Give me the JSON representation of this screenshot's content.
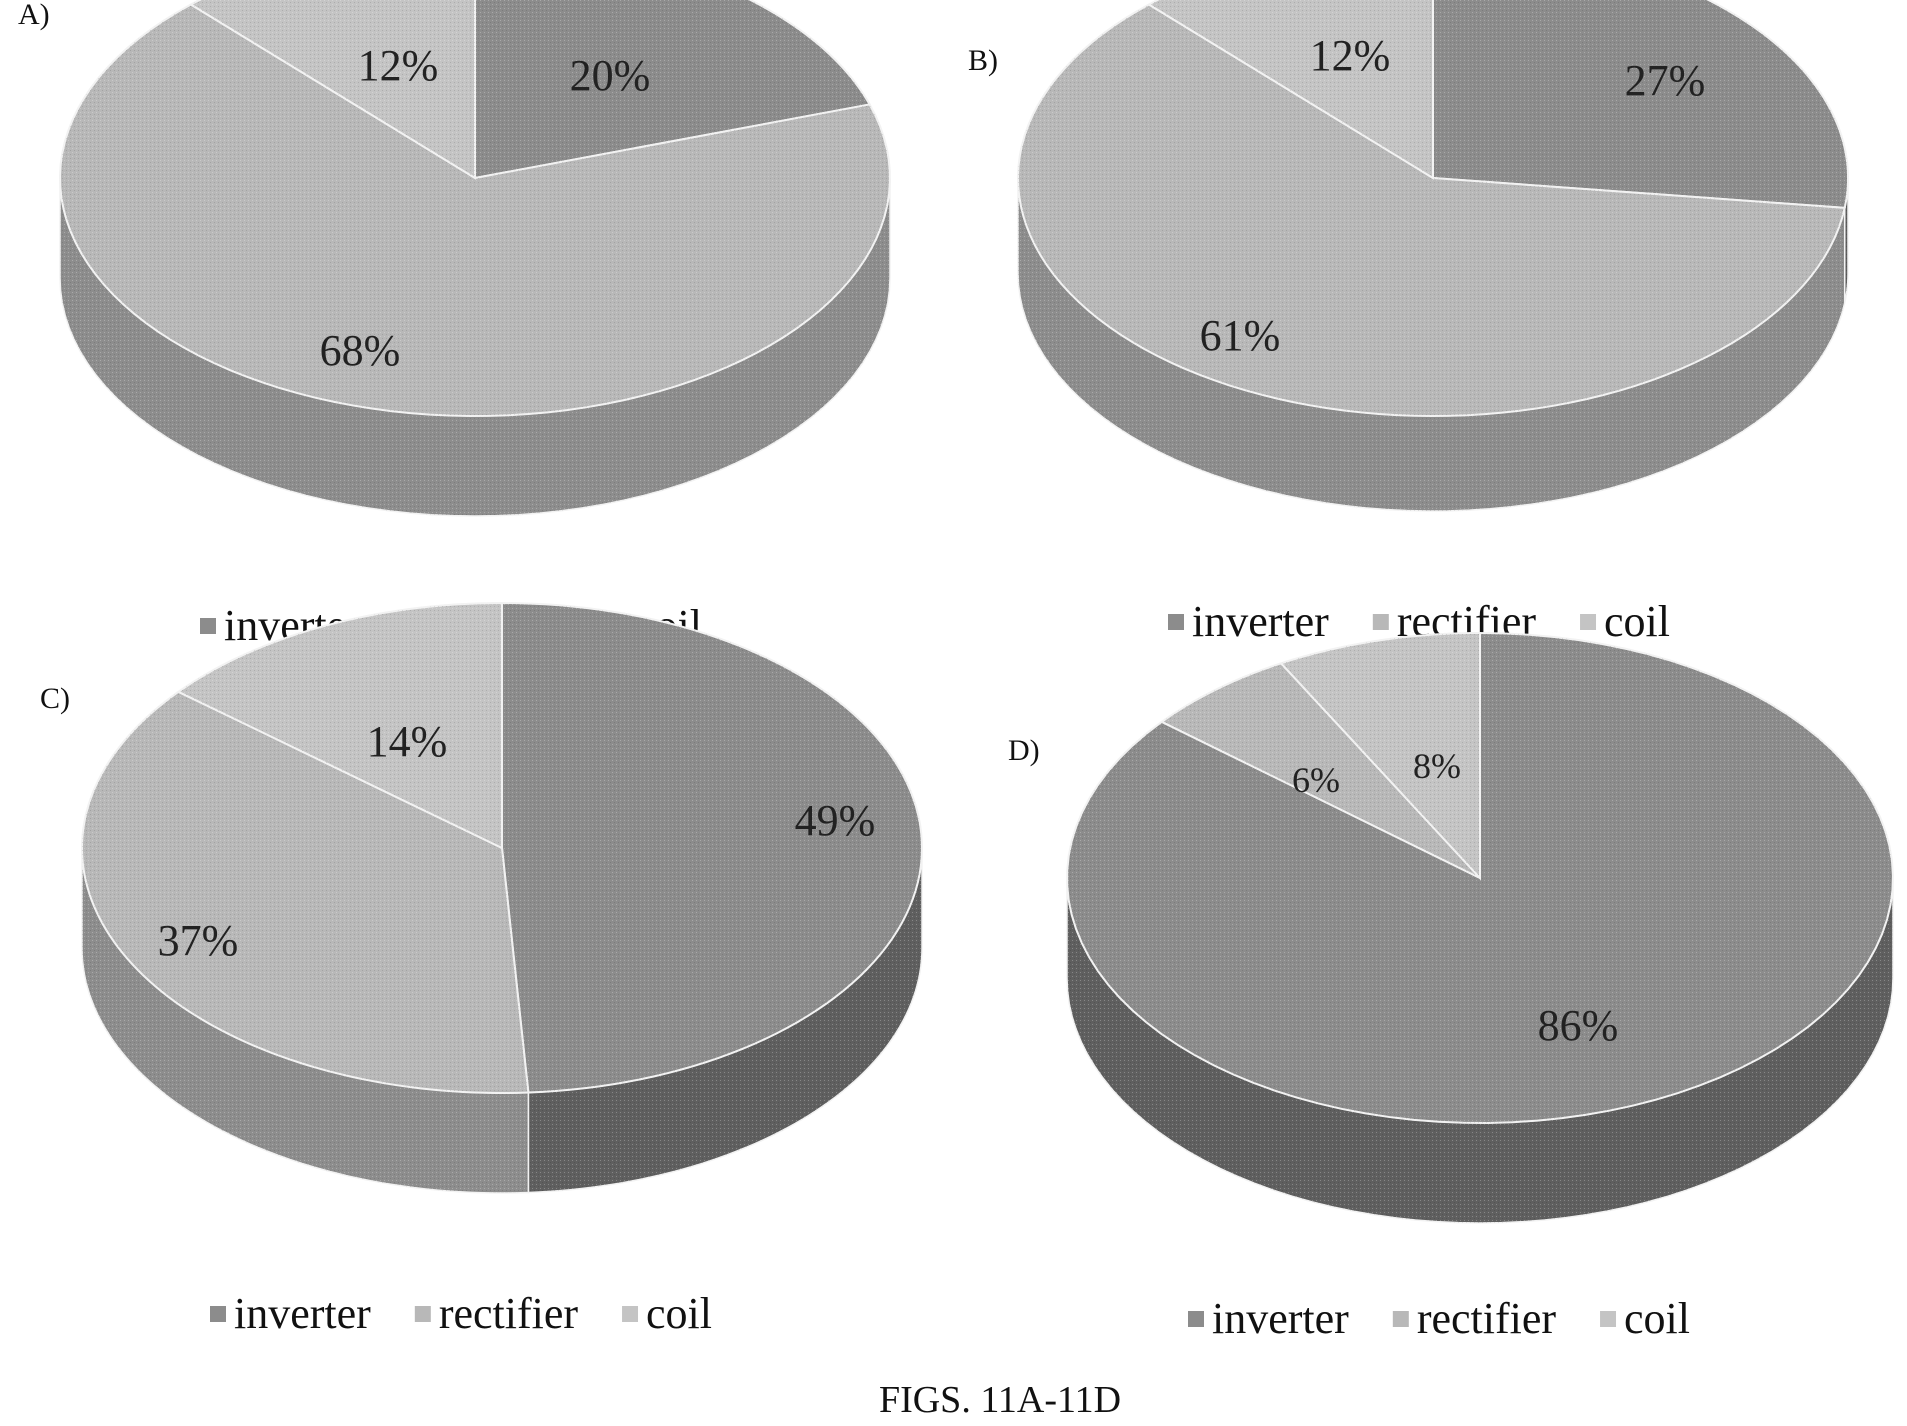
{
  "figure_caption": "FIGS. 11A-11D",
  "legend_labels": [
    "inverter",
    "rectifier",
    "coil"
  ],
  "colors": {
    "inverter_top": "#8c8c8c",
    "inverter_side": "#5f5f5f",
    "rectifier_top": "#b8b8b8",
    "rectifier_side": "#8d8d8d",
    "coil_top": "#c4c4c4",
    "coil_side": "#9a9a9a",
    "edge": "#f2f2f2"
  },
  "chart_data": [
    {
      "type": "pie",
      "panel_label": "A)",
      "categories": [
        "inverter",
        "rectifier",
        "coil"
      ],
      "values": [
        20,
        68,
        12
      ],
      "data_labels": [
        "20%",
        "68%",
        "12%"
      ],
      "legend": [
        "inverter",
        "rectifier",
        "coil"
      ],
      "legend_position": "bottom",
      "style": "3d"
    },
    {
      "type": "pie",
      "panel_label": "B)",
      "categories": [
        "inverter",
        "rectifier",
        "coil"
      ],
      "values": [
        27,
        61,
        12
      ],
      "data_labels": [
        "27%",
        "61%",
        "12%"
      ],
      "legend": [
        "inverter",
        "rectifier",
        "coil"
      ],
      "legend_position": "bottom",
      "style": "3d"
    },
    {
      "type": "pie",
      "panel_label": "C)",
      "categories": [
        "inverter",
        "rectifier",
        "coil"
      ],
      "values": [
        49,
        37,
        14
      ],
      "data_labels": [
        "49%",
        "37%",
        "14%"
      ],
      "legend": [
        "inverter",
        "rectifier",
        "coil"
      ],
      "legend_position": "bottom",
      "style": "3d"
    },
    {
      "type": "pie",
      "panel_label": "D)",
      "categories": [
        "inverter",
        "rectifier",
        "coil"
      ],
      "values": [
        86,
        6,
        8
      ],
      "data_labels": [
        "86%",
        "6%",
        "8%"
      ],
      "legend": [
        "inverter",
        "rectifier",
        "coil"
      ],
      "legend_position": "bottom",
      "style": "3d"
    }
  ]
}
